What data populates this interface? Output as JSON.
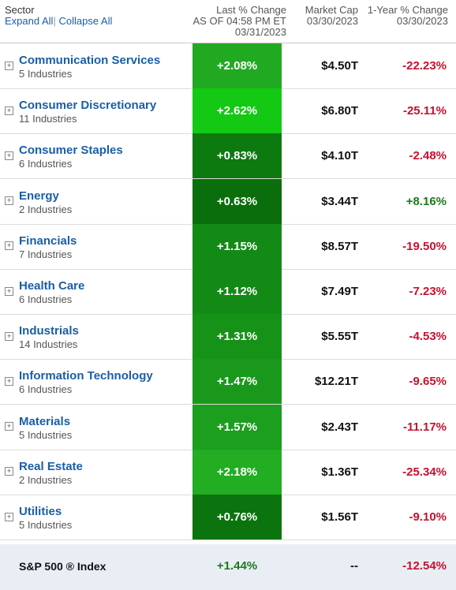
{
  "header": {
    "sector_label": "Sector",
    "expand_all": "Expand All",
    "separator": "|",
    "collapse_all": "Collapse All",
    "last_change_label": "Last % Change",
    "last_change_asof": "AS OF 04:58 PM ET",
    "last_change_date": "03/31/2023",
    "market_cap_label": "Market Cap",
    "market_cap_date": "03/30/2023",
    "year_change_label": "1-Year % Change",
    "year_change_date": "03/30/2023"
  },
  "colors": {
    "link": "#1a5ea8",
    "negative": "#c8102e",
    "positive": "#1c7a1c"
  },
  "rows": [
    {
      "name": "Communication Services",
      "industries": "5 Industries",
      "change": "+2.08%",
      "cap": "$4.50T",
      "year": "-22.23%",
      "year_sign": "neg",
      "bg": "#22a922"
    },
    {
      "name": "Consumer Discretionary",
      "industries": "11 Industries",
      "change": "+2.62%",
      "cap": "$6.80T",
      "year": "-25.11%",
      "year_sign": "neg",
      "bg": "#14c914"
    },
    {
      "name": "Consumer Staples",
      "industries": "6 Industries",
      "change": "+0.83%",
      "cap": "$4.10T",
      "year": "-2.48%",
      "year_sign": "neg",
      "bg": "#0d7a10"
    },
    {
      "name": "Energy",
      "industries": "2 Industries",
      "change": "+0.63%",
      "cap": "$3.44T",
      "year": "+8.16%",
      "year_sign": "pos",
      "bg": "#0a6e0c"
    },
    {
      "name": "Financials",
      "industries": "7 Industries",
      "change": "+1.15%",
      "cap": "$8.57T",
      "year": "-19.50%",
      "year_sign": "neg",
      "bg": "#138a16"
    },
    {
      "name": "Health Care",
      "industries": "6 Industries",
      "change": "+1.12%",
      "cap": "$7.49T",
      "year": "-7.23%",
      "year_sign": "neg",
      "bg": "#138a16"
    },
    {
      "name": "Industrials",
      "industries": "14 Industries",
      "change": "+1.31%",
      "cap": "$5.55T",
      "year": "-4.53%",
      "year_sign": "neg",
      "bg": "#179219"
    },
    {
      "name": "Information Technology",
      "industries": "6 Industries",
      "change": "+1.47%",
      "cap": "$12.21T",
      "year": "-9.65%",
      "year_sign": "neg",
      "bg": "#1a981c"
    },
    {
      "name": "Materials",
      "industries": "5 Industries",
      "change": "+1.57%",
      "cap": "$2.43T",
      "year": "-11.17%",
      "year_sign": "neg",
      "bg": "#1c9e1e"
    },
    {
      "name": "Real Estate",
      "industries": "2 Industries",
      "change": "+2.18%",
      "cap": "$1.36T",
      "year": "-25.34%",
      "year_sign": "neg",
      "bg": "#22ad22"
    },
    {
      "name": "Utilities",
      "industries": "5 Industries",
      "change": "+0.76%",
      "cap": "$1.56T",
      "year": "-9.10%",
      "year_sign": "neg",
      "bg": "#0b740e"
    }
  ],
  "footer": {
    "name": "S&P 500 ® Index",
    "change": "+1.44%",
    "cap": "--",
    "year": "-12.54%"
  },
  "icons": {
    "expand": "plus-box-icon",
    "expand_glyph": "+"
  }
}
